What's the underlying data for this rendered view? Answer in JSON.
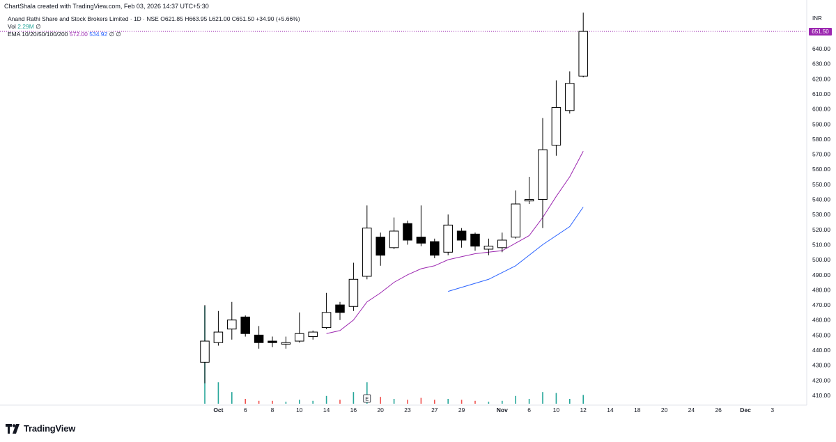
{
  "header": {
    "credit": "ChartShala created with TradingView.com, Feb 03, 2026 14:37 UTC+5:30",
    "symbol": "Anand Rathi Share and Stock Brokers Limited · 1D · NSE",
    "ohlc": "O621.85  H663.95  L621.00  C651.50  +34.90 (+5.66%)",
    "vol_label": "Vol",
    "vol_value": "2.29M",
    "vol_extra": "∅",
    "ema_label": "EMA 10/20/50/100/200",
    "ema10_value": "572.00",
    "ema20_value": "534.92",
    "ema_extra": "∅  ∅"
  },
  "price_axis": {
    "currency": "INR",
    "last_price_label": "651.50"
  },
  "branding": {
    "logo_text": "TradingView"
  },
  "colors": {
    "up_fill": "#ffffff",
    "down_fill": "#000000",
    "ema10": "#9c27b0",
    "ema20": "#2962ff",
    "vol_up": "#26a69a",
    "vol_down": "#ef5350",
    "last_price": "#9c27b0"
  },
  "chart_data": {
    "type": "candlestick",
    "ylim": [
      405,
      665
    ],
    "y_ticks": [
      410,
      420,
      430,
      440,
      450,
      460,
      470,
      480,
      490,
      500,
      510,
      520,
      530,
      540,
      550,
      560,
      570,
      580,
      590,
      600,
      610,
      620,
      630,
      640
    ],
    "x_ticks": [
      {
        "label": "Oct",
        "slot": 1,
        "bold": true
      },
      {
        "label": "6",
        "slot": 3
      },
      {
        "label": "8",
        "slot": 5
      },
      {
        "label": "10",
        "slot": 7
      },
      {
        "label": "14",
        "slot": 9
      },
      {
        "label": "16",
        "slot": 11
      },
      {
        "label": "20",
        "slot": 13
      },
      {
        "label": "23",
        "slot": 15
      },
      {
        "label": "27",
        "slot": 17
      },
      {
        "label": "29",
        "slot": 19
      },
      {
        "label": "Nov",
        "slot": 22,
        "bold": true
      },
      {
        "label": "6",
        "slot": 24
      },
      {
        "label": "10",
        "slot": 26
      },
      {
        "label": "12",
        "slot": 28
      },
      {
        "label": "14",
        "slot": 30
      },
      {
        "label": "18",
        "slot": 32
      },
      {
        "label": "20",
        "slot": 34
      },
      {
        "label": "24",
        "slot": 36
      },
      {
        "label": "26",
        "slot": 38
      },
      {
        "label": "Dec",
        "slot": 40,
        "bold": true
      },
      {
        "label": "3",
        "slot": 42
      }
    ],
    "candles": [
      {
        "o": 432,
        "h": 470,
        "l": 418,
        "c": 446,
        "v": 1.0
      },
      {
        "o": 445,
        "h": 466,
        "l": 443,
        "c": 452,
        "v": 0.22
      },
      {
        "o": 454,
        "h": 472,
        "l": 447,
        "c": 460,
        "v": 0.12
      },
      {
        "o": 462,
        "h": 463,
        "l": 449,
        "c": 451,
        "v": 0.05
      },
      {
        "o": 450,
        "h": 456,
        "l": 441,
        "c": 445,
        "v": 0.03
      },
      {
        "o": 446,
        "h": 449,
        "l": 442,
        "c": 445,
        "v": 0.03
      },
      {
        "o": 444,
        "h": 449,
        "l": 441,
        "c": 445,
        "v": 0.02
      },
      {
        "o": 446,
        "h": 465,
        "l": 445,
        "c": 451,
        "v": 0.04
      },
      {
        "o": 449,
        "h": 453,
        "l": 447,
        "c": 452,
        "v": 0.03
      },
      {
        "o": 455,
        "h": 478,
        "l": 454,
        "c": 465,
        "v": 0.08
      },
      {
        "o": 470,
        "h": 472,
        "l": 460,
        "c": 465,
        "v": 0.04
      },
      {
        "o": 469,
        "h": 498,
        "l": 466,
        "c": 487,
        "v": 0.12
      },
      {
        "o": 489,
        "h": 536,
        "l": 487,
        "c": 521,
        "v": 0.22
      },
      {
        "o": 515,
        "h": 518,
        "l": 496,
        "c": 503,
        "v": 0.07
      },
      {
        "o": 508,
        "h": 528,
        "l": 507,
        "c": 519,
        "v": 0.05
      },
      {
        "o": 524,
        "h": 526,
        "l": 510,
        "c": 513,
        "v": 0.04
      },
      {
        "o": 515,
        "h": 536,
        "l": 509,
        "c": 511,
        "v": 0.06
      },
      {
        "o": 512,
        "h": 514,
        "l": 501,
        "c": 503,
        "v": 0.04
      },
      {
        "o": 505,
        "h": 530,
        "l": 503,
        "c": 523,
        "v": 0.05
      },
      {
        "o": 519,
        "h": 521,
        "l": 508,
        "c": 513,
        "v": 0.04
      },
      {
        "o": 517,
        "h": 518,
        "l": 506,
        "c": 509,
        "v": 0.03
      },
      {
        "o": 507,
        "h": 514,
        "l": 503,
        "c": 509,
        "v": 0.02
      },
      {
        "o": 508,
        "h": 518,
        "l": 505,
        "c": 513,
        "v": 0.03
      },
      {
        "o": 515,
        "h": 546,
        "l": 514,
        "c": 537,
        "v": 0.08
      },
      {
        "o": 539,
        "h": 555,
        "l": 537,
        "c": 540,
        "v": 0.05
      },
      {
        "o": 540,
        "h": 594,
        "l": 521,
        "c": 573,
        "v": 0.12
      },
      {
        "o": 576,
        "h": 619,
        "l": 569,
        "c": 601,
        "v": 0.11
      },
      {
        "o": 599,
        "h": 625,
        "l": 597,
        "c": 617,
        "v": 0.05
      },
      {
        "o": 621.85,
        "h": 663.95,
        "l": 621,
        "c": 651.5,
        "v": 0.09
      }
    ],
    "ema10": [
      null,
      null,
      null,
      null,
      null,
      null,
      null,
      null,
      null,
      451,
      453,
      460,
      472,
      478,
      485,
      490,
      494,
      496,
      500,
      502,
      504,
      505,
      506,
      511,
      516,
      528,
      542,
      555,
      572
    ],
    "ema20": [
      null,
      null,
      null,
      null,
      null,
      null,
      null,
      null,
      null,
      null,
      null,
      null,
      null,
      null,
      null,
      null,
      null,
      null,
      479,
      null,
      null,
      487,
      null,
      496,
      null,
      510,
      null,
      522,
      535
    ],
    "earnings_marker": {
      "slot": 12,
      "label": "E"
    }
  }
}
